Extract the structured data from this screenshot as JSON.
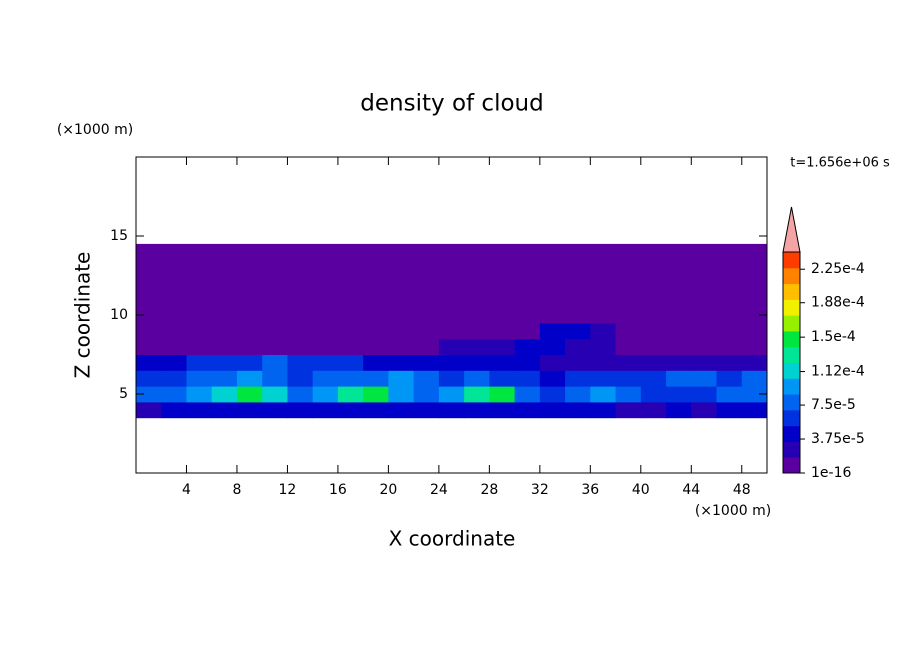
{
  "chart_data": {
    "type": "contour",
    "title": "density of cloud",
    "x_label": "X coordinate",
    "y_label": "Z coordinate",
    "x_unit": "(×1000 m)",
    "y_unit": "(×1000 m)",
    "time_label": "t=1.656e+06 s",
    "xlim": [
      0,
      50
    ],
    "ylim": [
      0,
      20
    ],
    "xticks": [
      4,
      8,
      12,
      16,
      20,
      24,
      28,
      32,
      36,
      40,
      44,
      48
    ],
    "yticks": [
      5,
      10,
      15
    ],
    "x": [
      1,
      3,
      5,
      7,
      9,
      11,
      13,
      15,
      17,
      19,
      21,
      23,
      25,
      27,
      29,
      31,
      33,
      35,
      37,
      39,
      41,
      43,
      45,
      47,
      49
    ],
    "y": [
      4,
      5,
      6,
      7,
      8,
      9,
      10,
      11,
      12,
      13,
      14
    ],
    "z": [
      [
        3e-05,
        4e-05,
        4e-05,
        5e-05,
        4e-05,
        4e-05,
        5e-05,
        4e-05,
        4e-05,
        4e-05,
        5e-05,
        4e-05,
        4e-05,
        4e-05,
        5e-05,
        4e-05,
        4e-05,
        5e-05,
        4e-05,
        3e-05,
        3e-05,
        4e-05,
        3e-05,
        4e-05,
        4e-05
      ],
      [
        8e-05,
        9e-05,
        0.0001,
        0.00012,
        0.00015,
        0.00012,
        9e-05,
        0.0001,
        0.00014,
        0.00015,
        0.00011,
        9e-05,
        0.0001,
        0.00014,
        0.00015,
        8e-05,
        7e-05,
        9e-05,
        0.00011,
        8e-05,
        6e-05,
        6e-05,
        7e-05,
        8e-05,
        9e-05
      ],
      [
        6e-05,
        7e-05,
        8e-05,
        9e-05,
        0.0001,
        8e-05,
        7e-05,
        9e-05,
        8e-05,
        9e-05,
        0.0001,
        8e-05,
        7e-05,
        8e-05,
        7e-05,
        6e-05,
        5e-05,
        6e-05,
        7e-05,
        6e-05,
        6e-05,
        8e-05,
        9e-05,
        7e-05,
        8e-05
      ],
      [
        4e-05,
        5e-05,
        6e-05,
        6e-05,
        7e-05,
        8e-05,
        7e-05,
        6e-05,
        6e-05,
        5e-05,
        5e-05,
        5e-05,
        5e-05,
        4e-05,
        4e-05,
        4e-05,
        3e-05,
        3e-05,
        3e-05,
        3e-05,
        2e-05,
        2e-05,
        2e-05,
        3e-05,
        3e-05
      ],
      [
        1e-05,
        5e-06,
        5e-06,
        5e-06,
        5e-06,
        5e-06,
        5e-06,
        5e-06,
        5e-06,
        5e-06,
        5e-06,
        1e-05,
        2e-05,
        2e-05,
        3e-05,
        4e-05,
        4e-05,
        3e-05,
        2e-05,
        5e-06,
        5e-06,
        5e-06,
        5e-06,
        5e-06,
        5e-06
      ],
      [
        5e-06,
        5e-06,
        5e-06,
        5e-06,
        5e-06,
        5e-06,
        5e-06,
        5e-06,
        5e-06,
        5e-06,
        5e-06,
        5e-06,
        5e-06,
        5e-06,
        5e-06,
        5e-06,
        4e-05,
        5e-05,
        3e-05,
        5e-06,
        5e-06,
        5e-06,
        5e-06,
        5e-06,
        5e-06
      ],
      [
        5e-06,
        5e-06,
        5e-06,
        5e-06,
        5e-06,
        5e-06,
        5e-06,
        5e-06,
        5e-06,
        5e-06,
        5e-06,
        5e-06,
        5e-06,
        5e-06,
        5e-06,
        5e-06,
        5e-06,
        5e-06,
        5e-06,
        5e-06,
        5e-06,
        5e-06,
        5e-06,
        5e-06,
        5e-06
      ],
      [
        5e-06,
        5e-06,
        5e-06,
        5e-06,
        5e-06,
        5e-06,
        5e-06,
        5e-06,
        5e-06,
        5e-06,
        5e-06,
        5e-06,
        5e-06,
        5e-06,
        5e-06,
        5e-06,
        5e-06,
        5e-06,
        5e-06,
        5e-06,
        5e-06,
        5e-06,
        5e-06,
        5e-06,
        5e-06
      ],
      [
        5e-06,
        5e-06,
        5e-06,
        5e-06,
        5e-06,
        5e-06,
        5e-06,
        5e-06,
        5e-06,
        5e-06,
        5e-06,
        5e-06,
        5e-06,
        5e-06,
        5e-06,
        5e-06,
        5e-06,
        5e-06,
        5e-06,
        5e-06,
        5e-06,
        5e-06,
        5e-06,
        5e-06,
        5e-06
      ],
      [
        5e-06,
        5e-06,
        5e-06,
        5e-06,
        5e-06,
        5e-06,
        5e-06,
        5e-06,
        5e-06,
        5e-06,
        5e-06,
        5e-06,
        5e-06,
        5e-06,
        5e-06,
        5e-06,
        5e-06,
        5e-06,
        5e-06,
        5e-06,
        5e-06,
        5e-06,
        5e-06,
        5e-06,
        5e-06
      ],
      [
        5e-06,
        5e-06,
        5e-06,
        5e-06,
        5e-06,
        5e-06,
        5e-06,
        5e-06,
        5e-06,
        5e-06,
        5e-06,
        5e-06,
        5e-06,
        5e-06,
        5e-06,
        5e-06,
        5e-06,
        5e-06,
        5e-06,
        5e-06,
        5e-06,
        5e-06,
        5e-06,
        5e-06,
        5e-06
      ]
    ],
    "levels": [
      1e-16,
      1.875e-05,
      3.75e-05,
      5.625e-05,
      7.5e-05,
      9.375e-05,
      0.000112,
      0.000131,
      0.00015,
      0.000169,
      0.000188,
      0.000206,
      0.000225,
      0.000244
    ],
    "colors": [
      "#5a00a0",
      "#2800b4",
      "#0000c8",
      "#0032e0",
      "#0064f0",
      "#0096f5",
      "#00d2d2",
      "#00e696",
      "#00e640",
      "#96f000",
      "#f0f000",
      "#ffbe00",
      "#ff8200",
      "#ff3c00"
    ],
    "extend_color": "#f4a4a4",
    "colorbar_ticks": [
      {
        "value": 1e-16,
        "label": "1e-16"
      },
      {
        "value": 3.75e-05,
        "label": "3.75e-5"
      },
      {
        "value": 7.5e-05,
        "label": "7.5e-5"
      },
      {
        "value": 0.000112,
        "label": "1.12e-4"
      },
      {
        "value": 0.00015,
        "label": "1.5e-4"
      },
      {
        "value": 0.000188,
        "label": "1.88e-4"
      },
      {
        "value": 0.000225,
        "label": "2.25e-4"
      }
    ]
  }
}
